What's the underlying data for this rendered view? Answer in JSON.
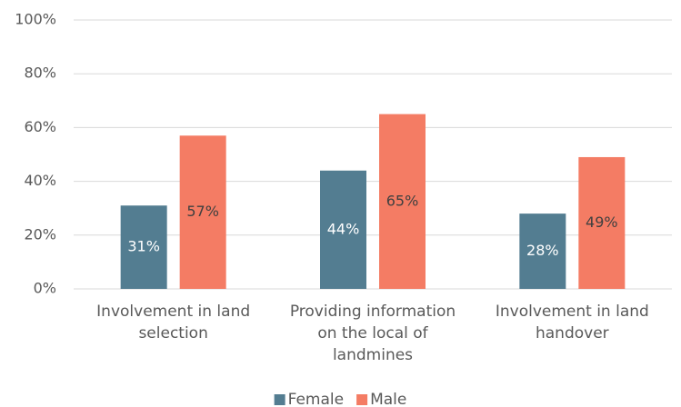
{
  "chart_data": {
    "type": "bar",
    "categories": [
      "Involvement in land selection",
      "Providing information on the local of landmines",
      "Involvement in land handover"
    ],
    "series": [
      {
        "name": "Female",
        "color": "#537d91",
        "values": [
          31,
          44,
          28
        ],
        "value_labels": [
          "31%",
          "44%",
          "28%"
        ]
      },
      {
        "name": "Male",
        "color": "#f47c64",
        "values": [
          57,
          65,
          49
        ],
        "value_labels": [
          "57%",
          "65%",
          "49%"
        ]
      }
    ],
    "ylim": [
      0,
      100
    ],
    "yticks": [
      {
        "value": 0,
        "label": "0%"
      },
      {
        "value": 20,
        "label": "20%"
      },
      {
        "value": 40,
        "label": "40%"
      },
      {
        "value": 60,
        "label": "60%"
      },
      {
        "value": 80,
        "label": "80%"
      },
      {
        "value": 100,
        "label": "100%"
      }
    ],
    "grid": true,
    "legend": "bottom"
  }
}
